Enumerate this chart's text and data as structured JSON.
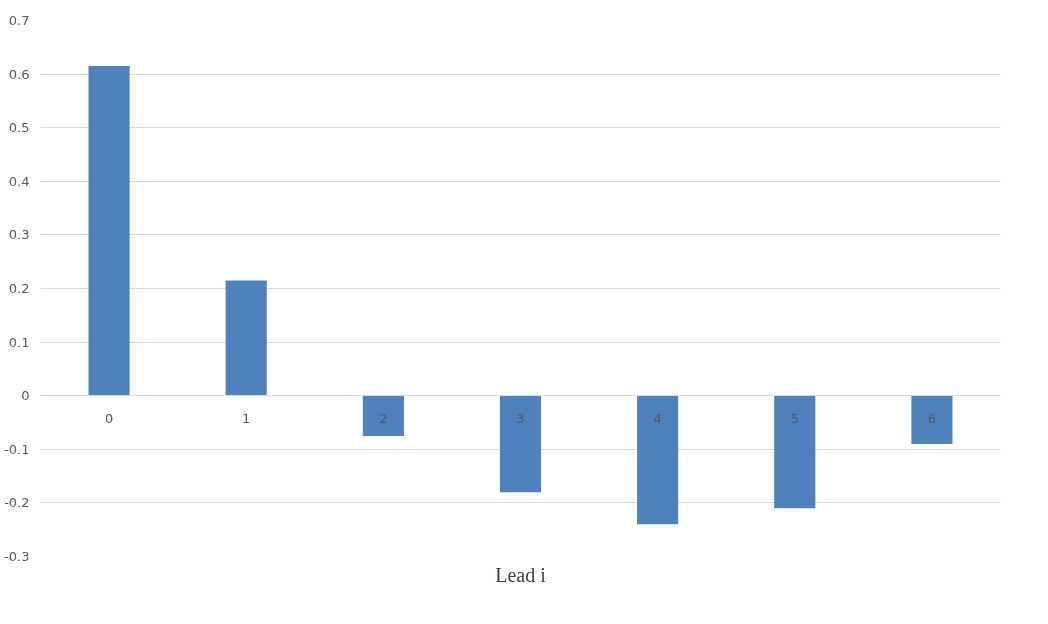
{
  "chart_data": {
    "type": "bar",
    "xlabel": "Lead i",
    "categories": [
      "0",
      "1",
      "2",
      "3",
      "4",
      "5",
      "6"
    ],
    "values": [
      0.615,
      0.215,
      -0.075,
      -0.18,
      -0.24,
      -0.21,
      -0.09
    ],
    "color": "#4f81bd",
    "ylim": [
      -0.3,
      0.7
    ],
    "yticks": [
      -0.3,
      -0.2,
      -0.1,
      0,
      0.1,
      0.2,
      0.3,
      0.4,
      0.5,
      0.6,
      0.7
    ],
    "grid": "y"
  }
}
